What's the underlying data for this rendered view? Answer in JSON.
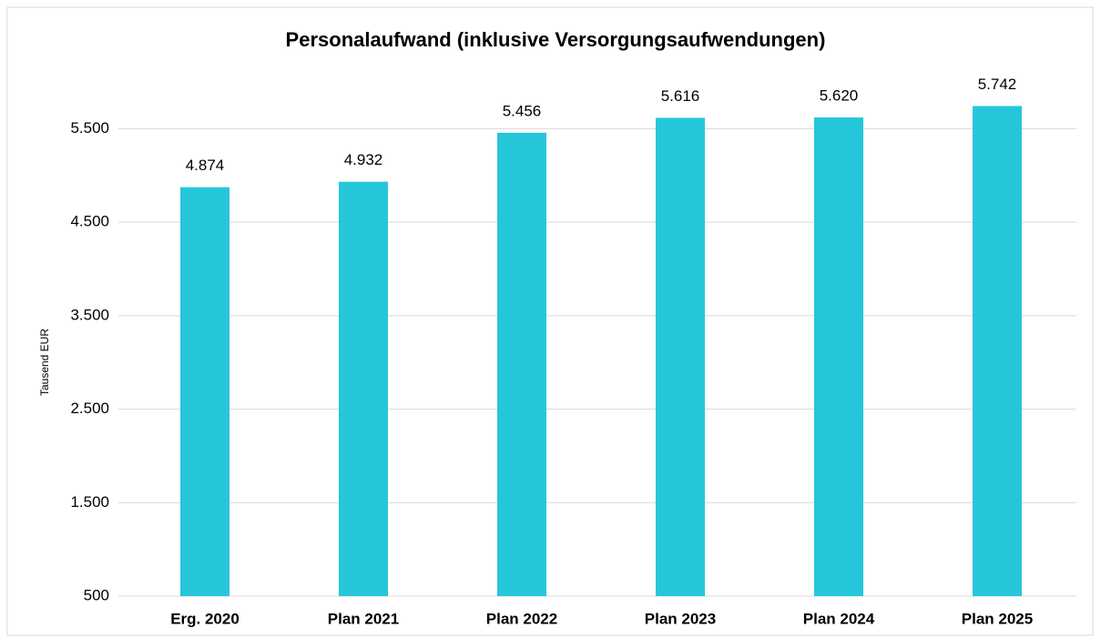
{
  "chart_data": {
    "type": "bar",
    "title": "Personalaufwand (inklusive Versorgungsaufwendungen)",
    "y_label": "Tausend EUR",
    "categories": [
      "Erg. 2020",
      "Plan 2021",
      "Plan 2022",
      "Plan 2023",
      "Plan 2024",
      "Plan 2025"
    ],
    "values": [
      4874,
      4932,
      5456,
      5616,
      5620,
      5742
    ],
    "value_labels": [
      "4.874",
      "4.932",
      "5.456",
      "5.616",
      "5.620",
      "5.742"
    ],
    "color": "#26c6da",
    "ylim": [
      500,
      6000
    ],
    "yticks": [
      500,
      {
        "value": 1500,
        "label": "1.500"
      },
      {
        "value": 2500,
        "label": "2.500"
      },
      {
        "value": 3500,
        "label": "3.500"
      },
      {
        "value": 4500,
        "label": "4.500"
      },
      {
        "value": 5500,
        "label": "5.500"
      }
    ],
    "grid": true
  }
}
